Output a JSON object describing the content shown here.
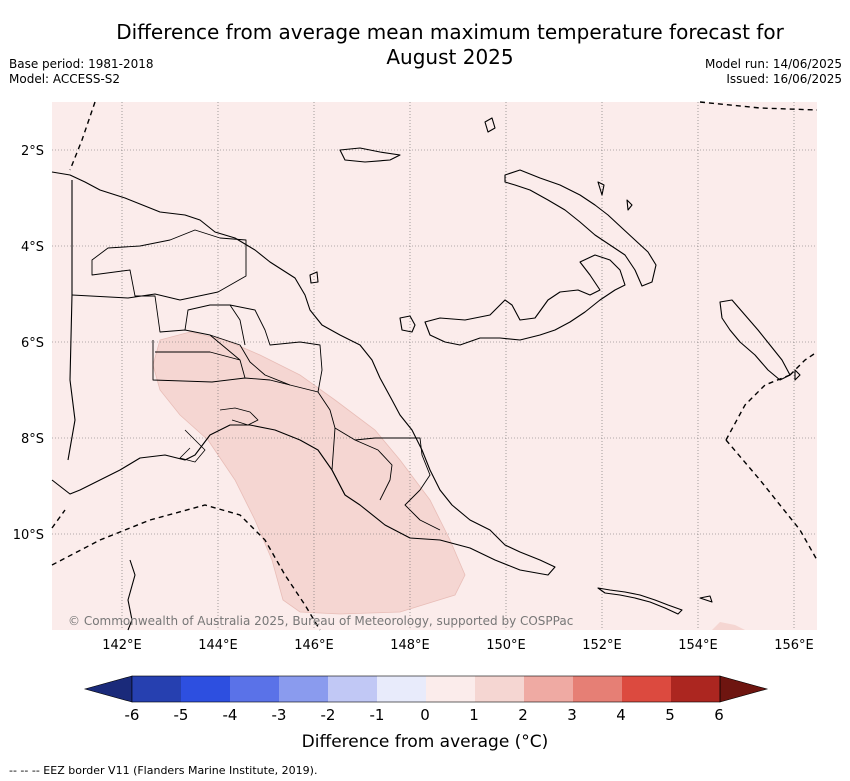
{
  "title": "Difference from average mean maximum temperature forecast for August 2025",
  "base_period": "Base period: 1981-2018",
  "model": "Model: ACCESS-S2",
  "model_run": "Model run: 14/06/2025",
  "issued": "Issued: 16/06/2025",
  "credit": "© Commonwealth of Australia 2025, Bureau of Meteorology, supported by COSPPac",
  "axes": {
    "lon_labels": [
      "142°E",
      "144°E",
      "146°E",
      "148°E",
      "150°E",
      "152°E",
      "154°E",
      "156°E"
    ],
    "lat_labels": [
      "2°S",
      "4°S",
      "6°S",
      "8°S",
      "10°S"
    ]
  },
  "colorbar": {
    "label": "Difference from average (°C)",
    "ticks": [
      "-6",
      "-5",
      "-4",
      "-3",
      "-2",
      "-1",
      "0",
      "1",
      "2",
      "3",
      "4",
      "5",
      "6"
    ],
    "colors": [
      "#1a2a7a",
      "#2640b0",
      "#2d4fe0",
      "#5a72e8",
      "#8a9bee",
      "#c1c8f5",
      "#e8ebfb",
      "#fbeceb",
      "#f5d6d2",
      "#efaaa3",
      "#e67f75",
      "#dc4a3f",
      "#ac2620",
      "#6e1510"
    ]
  },
  "map_fill_color": "#fbeceb",
  "anomaly_patch_color": "#f5d6d2",
  "footnote": "-- -- -- EEZ border V11 (Flanders Marine Institute, 2019)."
}
